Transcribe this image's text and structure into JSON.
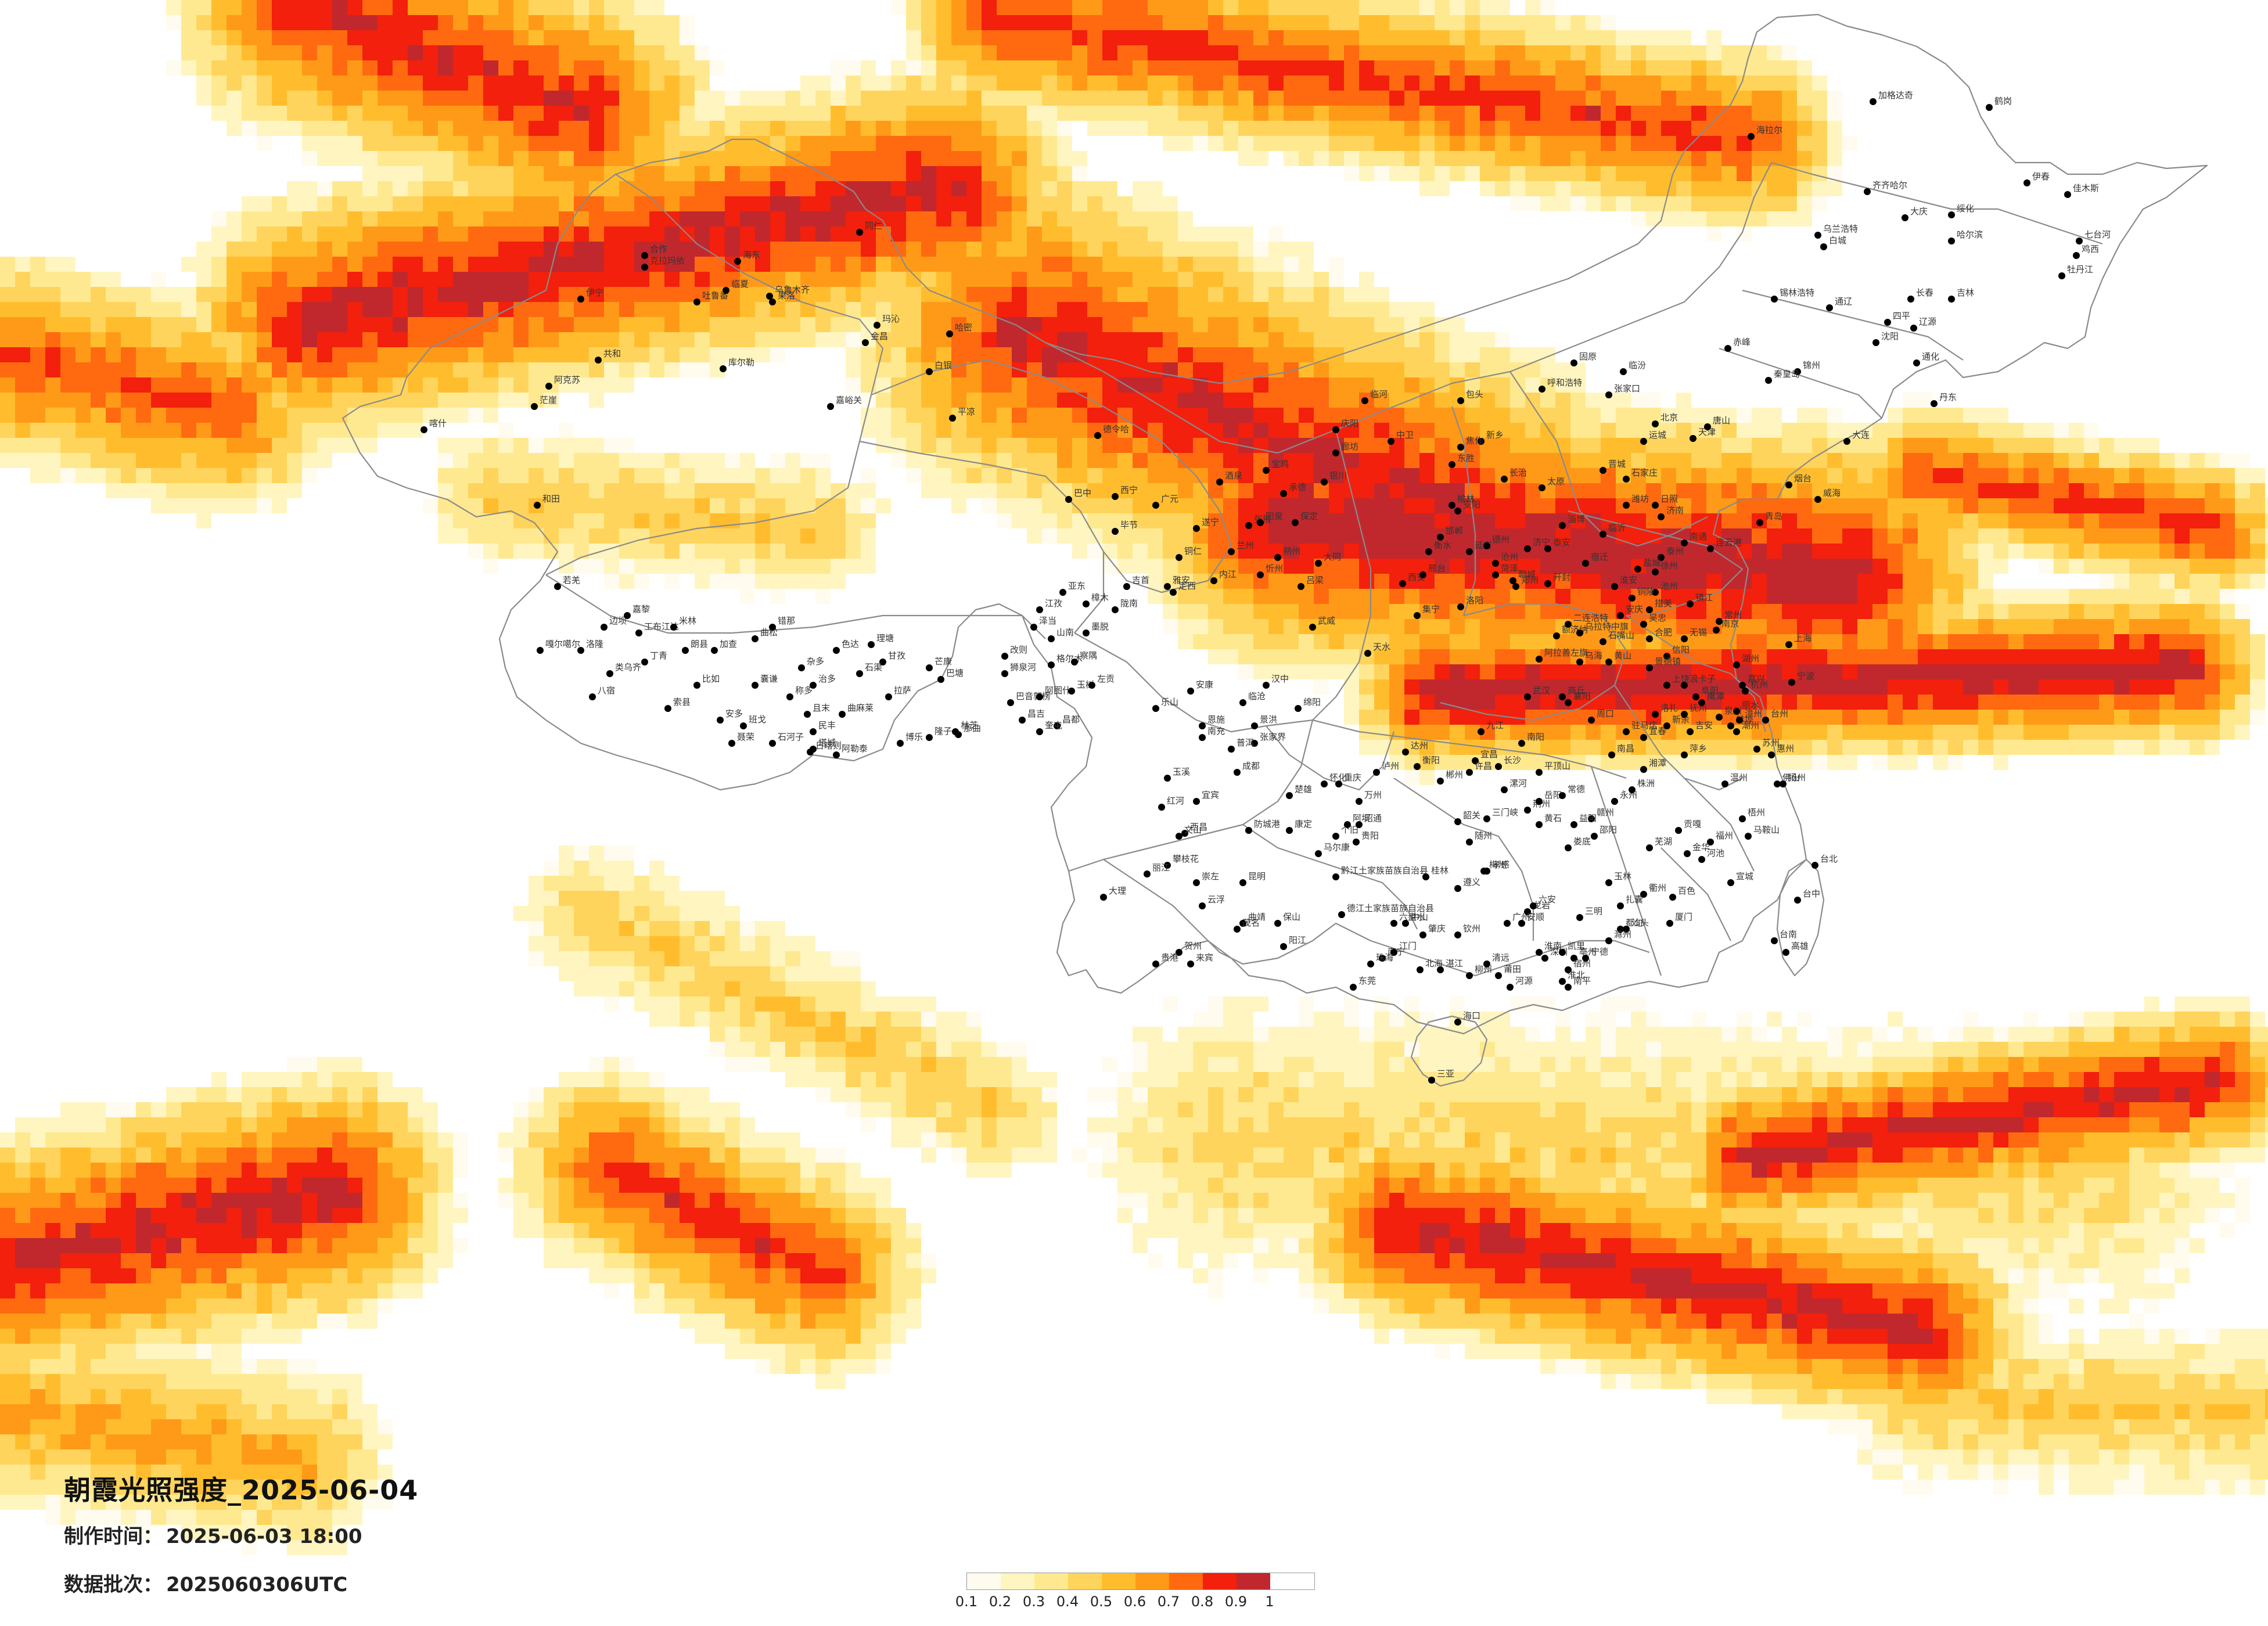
{
  "title": "朝霞光照强度_2025-06-04",
  "meta": {
    "made_label": "制作时间：",
    "made_value": "2025-06-03 18:00",
    "batch_label": "数据批次：",
    "batch_value": "2025060306UTC"
  },
  "legend": {
    "ticks": [
      "0.1",
      "0.2",
      "0.3",
      "0.4",
      "0.5",
      "0.6",
      "0.7",
      "0.8",
      "0.9",
      "1"
    ],
    "colors": [
      "#fffbee",
      "#fff5c0",
      "#ffe990",
      "#ffd45c",
      "#ffbd2e",
      "#ff9a18",
      "#ff6a10",
      "#f2200c",
      "#c0282e"
    ]
  },
  "colors": {
    "background": "#ffffff",
    "border": "#8a8a8a",
    "city_dot": "#000000"
  },
  "cities": [
    {
      "name": "加格达奇"
    },
    {
      "name": "鹤岗"
    },
    {
      "name": "海拉尔"
    },
    {
      "name": "伊春"
    },
    {
      "name": "齐齐哈尔"
    },
    {
      "name": "大庆"
    },
    {
      "name": "绥化"
    },
    {
      "name": "佳木斯"
    },
    {
      "name": "哈尔滨"
    },
    {
      "name": "七台河"
    },
    {
      "name": "鸡西"
    },
    {
      "name": "乌兰浩特"
    },
    {
      "name": "白城"
    },
    {
      "name": "牡丹江"
    },
    {
      "name": "长春"
    },
    {
      "name": "吉林"
    },
    {
      "name": "锡林浩特"
    },
    {
      "name": "通辽"
    },
    {
      "name": "四平"
    },
    {
      "name": "辽源"
    },
    {
      "name": "沈阳"
    },
    {
      "name": "通化"
    },
    {
      "name": "锦州"
    },
    {
      "name": "丹东"
    },
    {
      "name": "大连"
    },
    {
      "name": "赤峰"
    },
    {
      "name": "秦皇岛"
    },
    {
      "name": "包头"
    },
    {
      "name": "呼和浩特"
    },
    {
      "name": "张家口"
    },
    {
      "name": "北京"
    },
    {
      "name": "天津"
    },
    {
      "name": "唐山"
    },
    {
      "name": "石家庄"
    },
    {
      "name": "太原"
    },
    {
      "name": "济南"
    },
    {
      "name": "青岛"
    },
    {
      "name": "烟台"
    },
    {
      "name": "威海"
    },
    {
      "name": "临河"
    },
    {
      "name": "银川"
    },
    {
      "name": "东胜"
    },
    {
      "name": "榆林"
    },
    {
      "name": "延安"
    },
    {
      "name": "兰州"
    },
    {
      "name": "西宁"
    },
    {
      "name": "西安"
    },
    {
      "name": "郑州"
    },
    {
      "name": "洛阳"
    },
    {
      "name": "开封"
    },
    {
      "name": "徐州"
    },
    {
      "name": "连云港"
    },
    {
      "name": "合肥"
    },
    {
      "name": "南京"
    },
    {
      "name": "上海"
    },
    {
      "name": "杭州"
    },
    {
      "name": "宁波"
    },
    {
      "name": "武汉"
    },
    {
      "name": "长沙"
    },
    {
      "name": "南昌"
    },
    {
      "name": "福州"
    },
    {
      "name": "厦门"
    },
    {
      "name": "广州"
    },
    {
      "name": "深圳"
    },
    {
      "name": "汕头"
    },
    {
      "name": "南宁"
    },
    {
      "name": "桂林"
    },
    {
      "name": "贵阳"
    },
    {
      "name": "昆明"
    },
    {
      "name": "成都"
    },
    {
      "name": "重庆"
    },
    {
      "name": "海口"
    },
    {
      "name": "三亚"
    },
    {
      "name": "台北"
    },
    {
      "name": "台中"
    },
    {
      "name": "高雄"
    },
    {
      "name": "台南"
    },
    {
      "name": "乌鲁木齐"
    },
    {
      "name": "克拉玛依"
    },
    {
      "name": "伊宁"
    },
    {
      "name": "吐鲁番"
    },
    {
      "name": "哈密"
    },
    {
      "name": "库尔勒"
    },
    {
      "name": "阿克苏"
    },
    {
      "name": "喀什"
    },
    {
      "name": "和田"
    },
    {
      "name": "嘎尔噶尔"
    },
    {
      "name": "拉萨"
    },
    {
      "name": "日喀则"
    },
    {
      "name": "那曲"
    },
    {
      "name": "昌都"
    },
    {
      "name": "林芝"
    },
    {
      "name": "格尔木"
    },
    {
      "name": "玉树"
    },
    {
      "name": "德令哈"
    },
    {
      "name": "酒泉"
    },
    {
      "name": "张掖"
    },
    {
      "name": "武威"
    },
    {
      "name": "天水"
    },
    {
      "name": "汉中"
    },
    {
      "name": "绵阳"
    },
    {
      "name": "南充"
    },
    {
      "name": "宜宾"
    },
    {
      "name": "西昌"
    },
    {
      "name": "攀枝花"
    },
    {
      "name": "丽江"
    },
    {
      "name": "大理"
    },
    {
      "name": "保山"
    },
    {
      "name": "曲靖"
    },
    {
      "name": "个旧"
    },
    {
      "name": "遵义"
    },
    {
      "name": "柳州"
    },
    {
      "name": "湛江"
    },
    {
      "name": "北海"
    },
    {
      "name": "钦州"
    },
    {
      "name": "玉林"
    },
    {
      "name": "赣州"
    },
    {
      "name": "九江"
    },
    {
      "name": "宜昌"
    },
    {
      "name": "襄阳"
    },
    {
      "name": "信阳"
    },
    {
      "name": "阜阳"
    },
    {
      "name": "蚌埠"
    },
    {
      "name": "扬州"
    },
    {
      "name": "苏州"
    },
    {
      "name": "温州"
    },
    {
      "name": "金华"
    },
    {
      "name": "衢州"
    },
    {
      "name": "三明"
    },
    {
      "name": "龙岩"
    },
    {
      "name": "梅州"
    },
    {
      "name": "韶关"
    },
    {
      "name": "郴州"
    },
    {
      "name": "衡阳"
    },
    {
      "name": "怀化"
    },
    {
      "name": "张家界"
    },
    {
      "name": "恩施"
    },
    {
      "name": "安康"
    },
    {
      "name": "达州"
    },
    {
      "name": "万州"
    },
    {
      "name": "阿坝"
    },
    {
      "name": "康定"
    },
    {
      "name": "马尔康"
    },
    {
      "name": "黔江土家族苗族自治县"
    },
    {
      "name": "德江土家族苗族自治县"
    },
    {
      "name": "六盘水"
    },
    {
      "name": "安顺"
    },
    {
      "name": "凯里"
    },
    {
      "name": "都匀"
    },
    {
      "name": "百色"
    },
    {
      "name": "河池"
    },
    {
      "name": "梧州"
    },
    {
      "name": "佛山"
    },
    {
      "name": "惠州"
    },
    {
      "name": "潮州"
    },
    {
      "name": "漳州"
    },
    {
      "name": "泉州"
    },
    {
      "name": "丽水"
    },
    {
      "name": "台州"
    },
    {
      "name": "嘉兴"
    },
    {
      "name": "湖州"
    },
    {
      "name": "无锡"
    },
    {
      "name": "常州"
    },
    {
      "name": "镇江"
    },
    {
      "name": "泰州"
    },
    {
      "name": "南通"
    },
    {
      "name": "盐城"
    },
    {
      "name": "淮安"
    },
    {
      "name": "宿迁"
    },
    {
      "name": "临沂"
    },
    {
      "name": "日照"
    },
    {
      "name": "潍坊"
    },
    {
      "name": "淄博"
    },
    {
      "name": "泰安"
    },
    {
      "name": "济宁"
    },
    {
      "name": "菏泽"
    },
    {
      "name": "聊城"
    },
    {
      "name": "德州"
    },
    {
      "name": "沧州"
    },
    {
      "name": "衡水"
    },
    {
      "name": "邢台"
    },
    {
      "name": "邯郸"
    },
    {
      "name": "安阳"
    },
    {
      "name": "新乡"
    },
    {
      "name": "焦作"
    },
    {
      "name": "长治"
    },
    {
      "name": "晋城"
    },
    {
      "name": "临汾"
    },
    {
      "name": "运城"
    },
    {
      "name": "吕梁"
    },
    {
      "name": "忻州"
    },
    {
      "name": "大同"
    },
    {
      "name": "朔州"
    },
    {
      "name": "阳泉"
    },
    {
      "name": "保定"
    },
    {
      "name": "承德"
    },
    {
      "name": "廊坊"
    },
    {
      "name": "宝鸡"
    },
    {
      "name": "平凉"
    },
    {
      "name": "庆阳"
    },
    {
      "name": "固原"
    },
    {
      "name": "中卫"
    },
    {
      "name": "吴忠"
    },
    {
      "name": "石嘴山"
    },
    {
      "name": "乌海"
    },
    {
      "name": "阿拉善左旗"
    },
    {
      "name": "额济纳"
    },
    {
      "name": "乌拉特中旗"
    },
    {
      "name": "二连浩特"
    },
    {
      "name": "集宁"
    },
    {
      "name": "商丘"
    },
    {
      "name": "周口"
    },
    {
      "name": "驻马店"
    },
    {
      "name": "南阳"
    },
    {
      "name": "平顶山"
    },
    {
      "name": "许昌"
    },
    {
      "name": "漯河"
    },
    {
      "name": "三门峡"
    },
    {
      "name": "随州"
    },
    {
      "name": "孝感"
    },
    {
      "name": "黄石"
    },
    {
      "name": "荆州"
    },
    {
      "name": "岳阳"
    },
    {
      "name": "常德"
    },
    {
      "name": "益阳"
    },
    {
      "name": "娄底"
    },
    {
      "name": "邵阳"
    },
    {
      "name": "永州"
    },
    {
      "name": "株洲"
    },
    {
      "name": "湘潭"
    },
    {
      "name": "萍乡"
    },
    {
      "name": "宜春"
    },
    {
      "name": "新余"
    },
    {
      "name": "吉安"
    },
    {
      "name": "抚州"
    },
    {
      "name": "鹰潭"
    },
    {
      "name": "上饶"
    },
    {
      "name": "景德镇"
    },
    {
      "name": "黄山"
    },
    {
      "name": "安庆"
    },
    {
      "name": "池州"
    },
    {
      "name": "铜陵"
    },
    {
      "name": "芜湖"
    },
    {
      "name": "马鞍山"
    },
    {
      "name": "宣城"
    },
    {
      "name": "滁州"
    },
    {
      "name": "六安"
    },
    {
      "name": "淮南"
    },
    {
      "name": "亳州"
    },
    {
      "name": "宿州"
    },
    {
      "name": "淮北"
    },
    {
      "name": "南平"
    },
    {
      "name": "宁德"
    },
    {
      "name": "莆田"
    },
    {
      "name": "河源"
    },
    {
      "name": "清远"
    },
    {
      "name": "肇庆"
    },
    {
      "name": "江门"
    },
    {
      "name": "中山"
    },
    {
      "name": "珠海"
    },
    {
      "name": "东莞"
    },
    {
      "name": "阳江"
    },
    {
      "name": "茂名"
    },
    {
      "name": "云浮"
    },
    {
      "name": "贺州"
    },
    {
      "name": "来宾"
    },
    {
      "name": "贵港"
    },
    {
      "name": "崇左"
    },
    {
      "name": "防城港"
    },
    {
      "name": "文山"
    },
    {
      "name": "红河"
    },
    {
      "name": "玉溪"
    },
    {
      "name": "普洱"
    },
    {
      "name": "临沧"
    },
    {
      "name": "景洪"
    },
    {
      "name": "楚雄"
    },
    {
      "name": "昭通"
    },
    {
      "name": "泸州"
    },
    {
      "name": "乐山"
    },
    {
      "name": "雅安"
    },
    {
      "name": "内江"
    },
    {
      "name": "遂宁"
    },
    {
      "name": "广元"
    },
    {
      "name": "巴中"
    },
    {
      "name": "毕节"
    },
    {
      "name": "铜仁"
    },
    {
      "name": "吉首"
    },
    {
      "name": "陇南"
    },
    {
      "name": "定西"
    },
    {
      "name": "白银"
    },
    {
      "name": "金昌"
    },
    {
      "name": "嘉峪关"
    },
    {
      "name": "海东"
    },
    {
      "name": "同仁"
    },
    {
      "name": "合作"
    },
    {
      "name": "临夏"
    },
    {
      "name": "果洛"
    },
    {
      "name": "玛沁"
    },
    {
      "name": "共和"
    },
    {
      "name": "茫崖"
    },
    {
      "name": "若羌"
    },
    {
      "name": "且末"
    },
    {
      "name": "民丰"
    },
    {
      "name": "塔城"
    },
    {
      "name": "阿勒泰"
    },
    {
      "name": "博乐"
    },
    {
      "name": "石河子"
    },
    {
      "name": "奎屯"
    },
    {
      "name": "昌吉"
    },
    {
      "name": "巴音郭楞"
    },
    {
      "name": "阿图什"
    },
    {
      "name": "狮泉河"
    },
    {
      "name": "改则"
    },
    {
      "name": "山南"
    },
    {
      "name": "泽当"
    },
    {
      "name": "江孜"
    },
    {
      "name": "亚东"
    },
    {
      "name": "樟木"
    },
    {
      "name": "墨脱"
    },
    {
      "name": "察隅"
    },
    {
      "name": "左贡"
    },
    {
      "name": "芒康"
    },
    {
      "name": "巴塘"
    },
    {
      "name": "理塘"
    },
    {
      "name": "甘孜"
    },
    {
      "name": "色达"
    },
    {
      "name": "石渠"
    },
    {
      "name": "杂多"
    },
    {
      "name": "治多"
    },
    {
      "name": "曲麻莱"
    },
    {
      "name": "称多"
    },
    {
      "name": "囊谦"
    },
    {
      "name": "班戈"
    },
    {
      "name": "安多"
    },
    {
      "name": "聂荣"
    },
    {
      "name": "比如"
    },
    {
      "name": "索县"
    },
    {
      "name": "丁青"
    },
    {
      "name": "类乌齐"
    },
    {
      "name": "八宿"
    },
    {
      "name": "洛隆"
    },
    {
      "name": "边坝"
    },
    {
      "name": "嘉黎"
    },
    {
      "name": "工布江达"
    },
    {
      "name": "米林"
    },
    {
      "name": "朗县"
    },
    {
      "name": "加查"
    },
    {
      "name": "曲松"
    },
    {
      "name": "错那"
    },
    {
      "name": "隆子"
    },
    {
      "name": "措美"
    },
    {
      "name": "洛扎"
    },
    {
      "name": "浪卡子"
    },
    {
      "name": "贡嘎"
    },
    {
      "name": "扎囊"
    },
    {
      "name": "桑日"
    },
    {
      "name": "琼结"
    },
    {
      "name": "乃东"
    },
    {
      "name": "曲水"
    },
    {
      "name": "堆龙德庆"
    },
    {
      "name": "达孜"
    },
    {
      "name": "墨竹工卡"
    },
    {
      "name": "林周"
    },
    {
      "name": "当雄"
    },
    {
      "name": "尼木"
    },
    {
      "name": "仁布"
    },
    {
      "name": "南木林"
    },
    {
      "name": "谢通门"
    },
    {
      "name": "昂仁"
    },
    {
      "name": "拉孜"
    },
    {
      "name": "萨迦"
    },
    {
      "name": "定日"
    },
    {
      "name": "聂拉木"
    },
    {
      "name": "吉隆"
    },
    {
      "name": "萨嘎"
    },
    {
      "name": "仲巴"
    },
    {
      "name": "普兰"
    },
    {
      "name": "札达"
    },
    {
      "name": "日土"
    },
    {
      "name": "革吉"
    },
    {
      "name": "措勤"
    },
    {
      "name": "尼玛"
    },
    {
      "name": "双湖"
    },
    {
      "name": "申扎"
    },
    {
      "name": "八一镇"
    },
    {
      "name": "淮北"
    },
    {
      "name": "巢湖"
    },
    {
      "name": "天长"
    },
    {
      "name": "衢州"
    },
    {
      "name": "永安"
    }
  ]
}
